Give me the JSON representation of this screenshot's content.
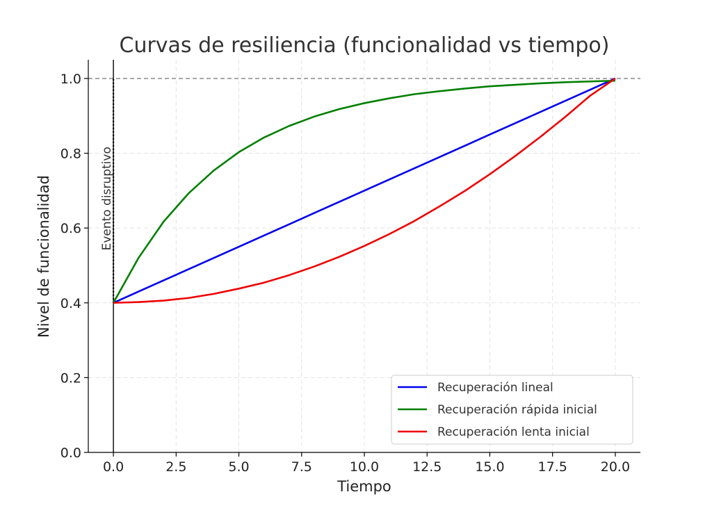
{
  "chart_data": {
    "type": "line",
    "title": "Curvas de resiliencia (funcionalidad vs tiempo)",
    "xlabel": "Tiempo",
    "ylabel": "Nivel de funcionalidad",
    "xlim": [
      -1,
      21
    ],
    "ylim": [
      0,
      1.05
    ],
    "xticks": [
      0,
      2.5,
      5,
      7.5,
      10,
      12.5,
      15,
      17.5,
      20
    ],
    "xtick_labels": [
      "0.0",
      "2.5",
      "5.0",
      "7.5",
      "10.0",
      "12.5",
      "15.0",
      "17.5",
      "20.0"
    ],
    "yticks": [
      0,
      0.2,
      0.4,
      0.6,
      0.8,
      1.0
    ],
    "ytick_labels": [
      "0.0",
      "0.2",
      "0.4",
      "0.6",
      "0.8",
      "1.0"
    ],
    "grid": true,
    "legend_position": "lower-right",
    "x": [
      0,
      1,
      2,
      3,
      4,
      5,
      6,
      7,
      8,
      9,
      10,
      11,
      12,
      13,
      14,
      15,
      16,
      17,
      18,
      19,
      20
    ],
    "series": [
      {
        "name": "Recuperación lineal",
        "color": "#0000ee",
        "values": [
          0.4,
          0.43,
          0.46,
          0.49,
          0.52,
          0.55,
          0.58,
          0.61,
          0.64,
          0.67,
          0.7,
          0.73,
          0.76,
          0.79,
          0.82,
          0.85,
          0.88,
          0.91,
          0.94,
          0.97,
          1.0
        ]
      },
      {
        "name": "Recuperación rápida inicial",
        "color": "#007f00",
        "values": [
          0.4,
          0.52,
          0.617,
          0.693,
          0.754,
          0.803,
          0.842,
          0.873,
          0.898,
          0.918,
          0.934,
          0.947,
          0.958,
          0.966,
          0.973,
          0.979,
          0.983,
          0.987,
          0.99,
          0.992,
          0.994
        ]
      },
      {
        "name": "Recuperación lenta inicial",
        "color": "#ee0000",
        "values": [
          0.4,
          0.402,
          0.406,
          0.413,
          0.424,
          0.438,
          0.454,
          0.474,
          0.497,
          0.523,
          0.552,
          0.584,
          0.619,
          0.658,
          0.699,
          0.744,
          0.792,
          0.843,
          0.897,
          0.954,
          1.0
        ]
      }
    ],
    "reference_lines": {
      "horizontal": {
        "y": 1.0,
        "style": "dashed",
        "color": "#808080"
      },
      "vertical": {
        "x": 0,
        "style": "solid",
        "color": "#000000"
      }
    },
    "annotation": {
      "text": "Evento disruptivo",
      "x": 0
    }
  }
}
